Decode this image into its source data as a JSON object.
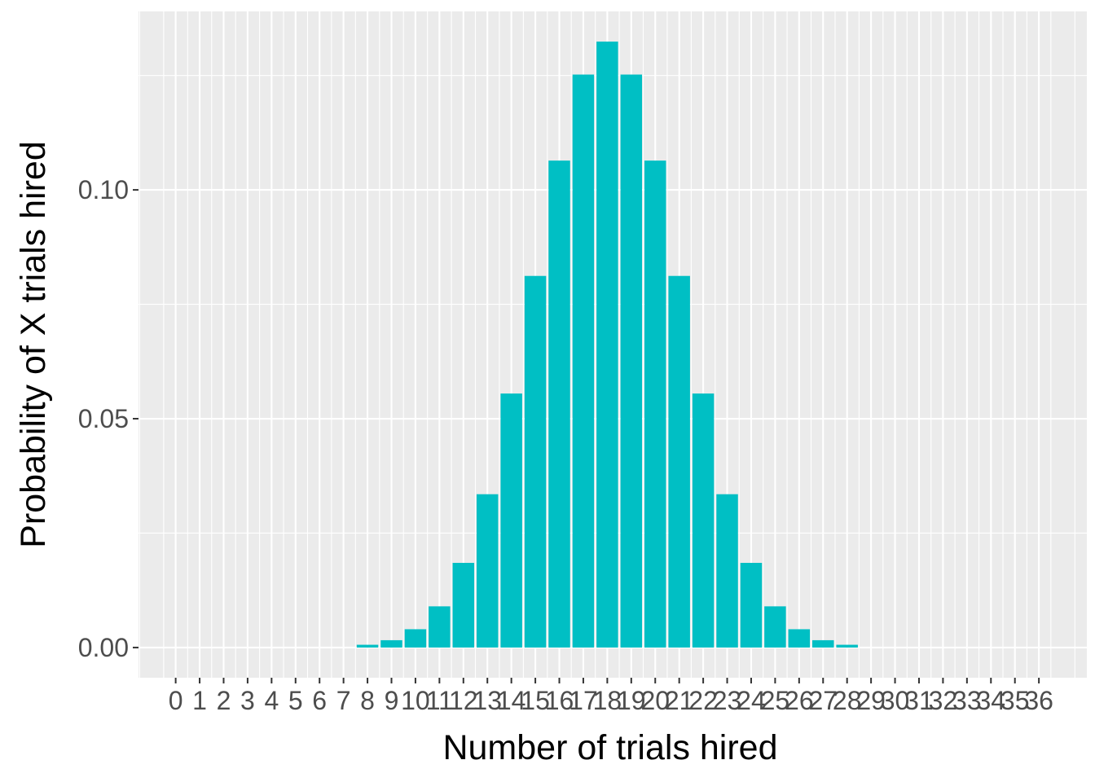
{
  "chart_data": {
    "type": "bar",
    "xlabel": "Number of trials hired",
    "ylabel": "Probability of X trials hired",
    "x_ticks": [
      "0",
      "1",
      "2",
      "3",
      "4",
      "5",
      "6",
      "7",
      "8",
      "9",
      "10",
      "11",
      "12",
      "13",
      "14",
      "15",
      "16",
      "17",
      "18",
      "19",
      "20",
      "21",
      "22",
      "23",
      "24",
      "25",
      "26",
      "27",
      "28",
      "29",
      "30",
      "31",
      "32",
      "33",
      "34",
      "35",
      "36"
    ],
    "categories": [
      8,
      9,
      10,
      11,
      12,
      13,
      14,
      15,
      16,
      17,
      18,
      19,
      20,
      21,
      22,
      23,
      24,
      25,
      26,
      27,
      28
    ],
    "values": [
      0.0006,
      0.0016,
      0.004,
      0.009,
      0.0185,
      0.0335,
      0.0555,
      0.0812,
      0.1064,
      0.1252,
      0.1324,
      0.1252,
      0.1064,
      0.0812,
      0.0555,
      0.0335,
      0.0185,
      0.009,
      0.004,
      0.0016,
      0.0006
    ],
    "y_ticks": [
      {
        "value": 0.0,
        "label": "0.00"
      },
      {
        "value": 0.05,
        "label": "0.05"
      },
      {
        "value": 0.1,
        "label": "0.10"
      }
    ],
    "xlim": [
      -1.55,
      38.0
    ],
    "ylim": [
      -0.0066,
      0.139
    ],
    "bar_color": "#00bfc4",
    "panel_background": "#ebebeb",
    "grid": true
  }
}
